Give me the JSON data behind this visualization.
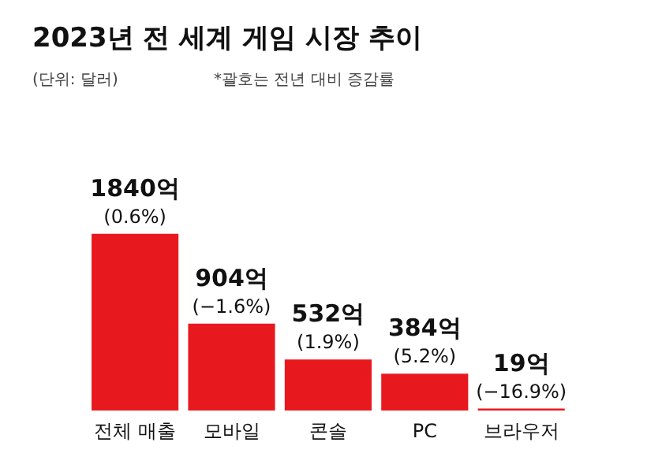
{
  "chart_data": {
    "type": "bar",
    "title": "2023년 전 세계 게임 시장 추이",
    "subtitle": "(단위: 달러)",
    "annotations": [
      "*괄호는 전년 대비 증감률"
    ],
    "categories": [
      "전체 매출",
      "모바일",
      "콘솔",
      "PC",
      "브라우저"
    ],
    "values": [
      1840,
      904,
      532,
      384,
      19
    ],
    "value_labels": [
      "1840억\n(0.6%)",
      "904억\n(−1.6%)",
      "532억\n(1.9%)",
      "384억\n(5.2%)",
      "19억\n(−16.9%)"
    ],
    "color": "#e8191e",
    "grid": false
  }
}
